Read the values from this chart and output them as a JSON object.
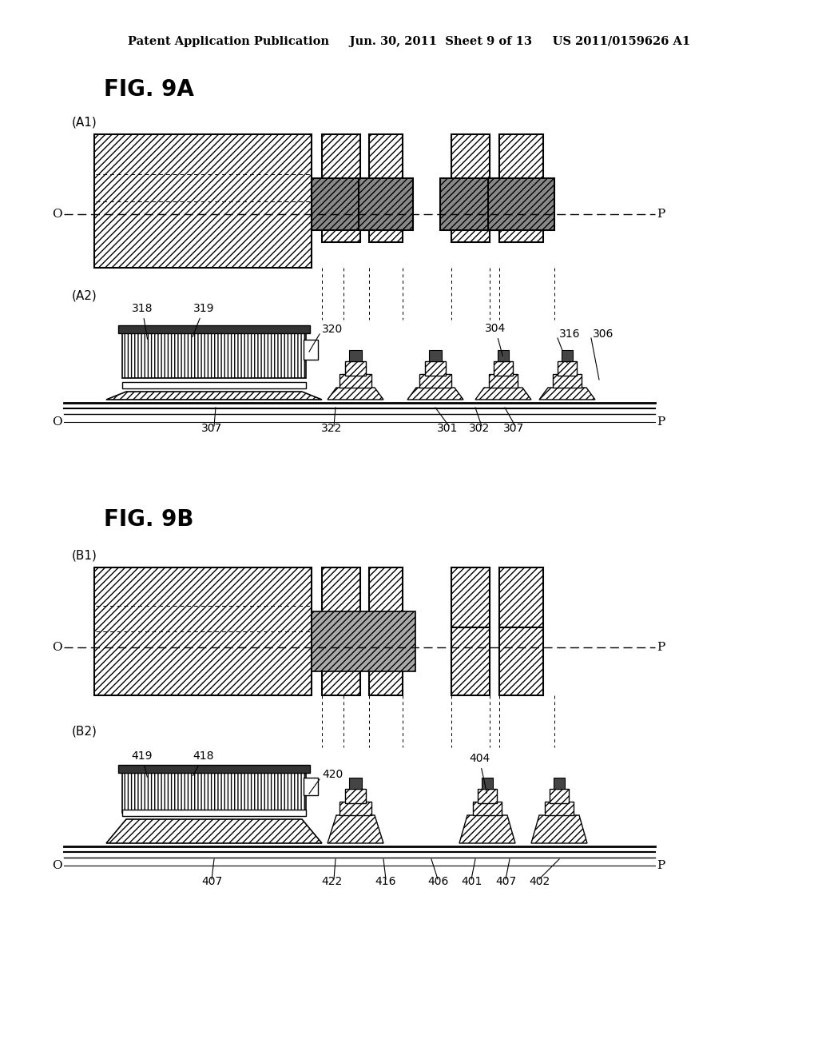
{
  "background_color": "#ffffff",
  "header": "Patent Application Publication     Jun. 30, 2011  Sheet 9 of 13     US 2011/0159626 A1",
  "fig9a_title": "FIG. 9A",
  "fig9b_title": "FIG. 9B",
  "label_A1": "(A1)",
  "label_A2": "(A2)",
  "label_B1": "(B1)",
  "label_B2": "(B2)"
}
